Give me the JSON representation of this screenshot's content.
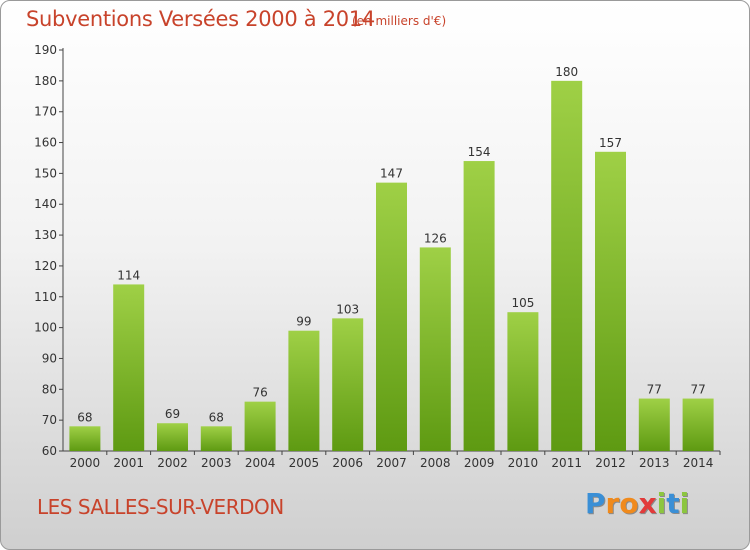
{
  "header": {
    "title": "Subventions Versées 2000 à 2014",
    "subtitle": "(en milliers d'€)"
  },
  "footer": {
    "location": "LES SALLES-SUR-VERDON",
    "logo_letters": [
      "P",
      "r",
      "o",
      "x",
      "i",
      "t",
      "i"
    ],
    "logo_colors": [
      "#3a8fd6",
      "#f08a1c",
      "#f08a1c",
      "#e23a3a",
      "#8cc63f",
      "#3a8fd6",
      "#8cc63f"
    ]
  },
  "chart_data": {
    "type": "bar",
    "categories": [
      "2000",
      "2001",
      "2002",
      "2003",
      "2004",
      "2005",
      "2006",
      "2007",
      "2008",
      "2009",
      "2010",
      "2011",
      "2012",
      "2013",
      "2014"
    ],
    "values": [
      68,
      114,
      69,
      68,
      76,
      99,
      103,
      147,
      126,
      154,
      105,
      180,
      157,
      77,
      77
    ],
    "data_labels": [
      "68",
      "114",
      "69",
      "68",
      "76",
      "99",
      "103",
      "147",
      "126",
      "154",
      "105",
      "180",
      "157",
      "77",
      "77"
    ],
    "yticks": [
      60,
      70,
      80,
      90,
      100,
      110,
      120,
      130,
      140,
      150,
      160,
      170,
      180,
      190
    ],
    "ylim": [
      60,
      190
    ],
    "grid": false,
    "colors": {
      "bar_top": "#9fd046",
      "bar_bottom": "#5e9a12",
      "text": "#333333",
      "axis": "#444444"
    }
  }
}
